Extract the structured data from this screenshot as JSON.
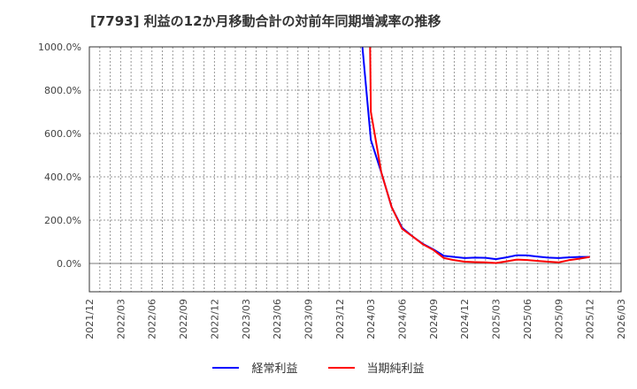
{
  "title": "[7793]  利益の12か月移動合計の対前年同期増減率の推移",
  "legend": [
    {
      "label": "経常利益",
      "color": "#0000ff"
    },
    {
      "label": "当期純利益",
      "color": "#ff0000"
    }
  ],
  "chart_data": {
    "type": "line",
    "title": "[7793] 利益の12か月移動合計の対前年同期増減率の推移",
    "xlabel": "",
    "ylabel": "",
    "ylim": [
      -134,
      1000
    ],
    "yticks": [
      "1000.0%",
      "800.0%",
      "600.0%",
      "400.0%",
      "200.0%",
      "0.0%"
    ],
    "xticks": [
      "2021/12",
      "2022/03",
      "2022/06",
      "2022/09",
      "2022/12",
      "2023/03",
      "2023/06",
      "2023/09",
      "2023/12",
      "2024/03",
      "2024/06",
      "2024/09",
      "2024/12",
      "2025/03",
      "2025/06",
      "2025/09",
      "2025/12",
      "2026/03"
    ],
    "grid": true,
    "legend_position": "bottom",
    "x": [
      "2024/02",
      "2024/03",
      "2024/04",
      "2024/05",
      "2024/06",
      "2024/07",
      "2024/08",
      "2024/09",
      "2024/10",
      "2024/11",
      "2024/12",
      "2025/01",
      "2025/02",
      "2025/03",
      "2025/04",
      "2025/05",
      "2025/06",
      "2025/07",
      "2025/08",
      "2025/09",
      "2025/10",
      "2025/11",
      "2025/12"
    ],
    "series": [
      {
        "name": "経常利益",
        "color": "#0000ff",
        "values": [
          1100,
          570,
          420,
          260,
          165,
          125,
          90,
          65,
          35,
          30,
          25,
          27,
          26,
          20,
          28,
          38,
          37,
          32,
          27,
          25,
          28,
          30,
          30
        ]
      },
      {
        "name": "当期純利益",
        "color": "#ff0000",
        "values": [
          null,
          700,
          420,
          260,
          160,
          125,
          88,
          62,
          25,
          15,
          8,
          6,
          5,
          2,
          10,
          18,
          16,
          12,
          8,
          5,
          15,
          22,
          30
        ]
      }
    ]
  }
}
